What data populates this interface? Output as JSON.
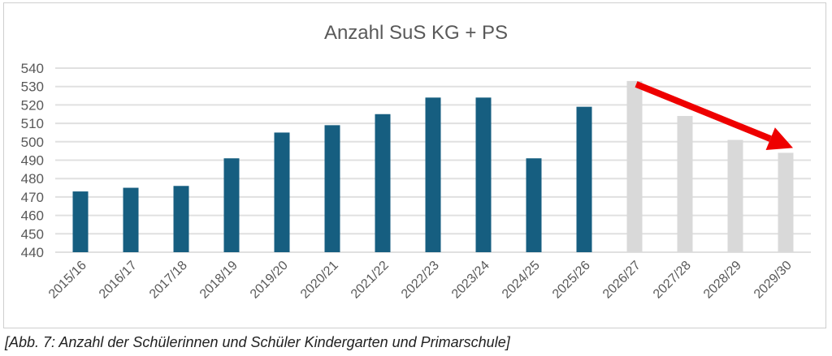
{
  "chart_data": {
    "type": "bar",
    "title": "Anzahl SuS KG + PS",
    "xlabel": "",
    "ylabel": "",
    "ylim": [
      440,
      540
    ],
    "yticks": [
      440,
      450,
      460,
      470,
      480,
      490,
      500,
      510,
      520,
      530,
      540
    ],
    "grid": true,
    "categories": [
      "2015/16",
      "2016/17",
      "2017/18",
      "2018/19",
      "2019/20",
      "2020/21",
      "2021/22",
      "2022/23",
      "2023/24",
      "2024/25",
      "2025/26",
      "2026/27",
      "2027/28",
      "2028/29",
      "2029/30"
    ],
    "values": [
      473,
      475,
      476,
      491,
      505,
      509,
      515,
      524,
      524,
      491,
      519,
      533,
      514,
      501,
      494
    ],
    "series_type": [
      "actual",
      "actual",
      "actual",
      "actual",
      "actual",
      "actual",
      "actual",
      "actual",
      "actual",
      "actual",
      "actual",
      "forecast",
      "forecast",
      "forecast",
      "forecast"
    ],
    "colors": {
      "actual": "#165e80",
      "forecast": "#d9d9d9",
      "arrow": "#ee0000",
      "grid": "#e0e0e0",
      "text": "#595959"
    },
    "annotations": [
      {
        "type": "arrow",
        "from": "2026/27",
        "to": "2029/30",
        "meaning": "declining trend"
      }
    ]
  },
  "caption": "[Abb. 7: Anzahl der Schülerinnen und Schüler Kindergarten und Primarschule]"
}
